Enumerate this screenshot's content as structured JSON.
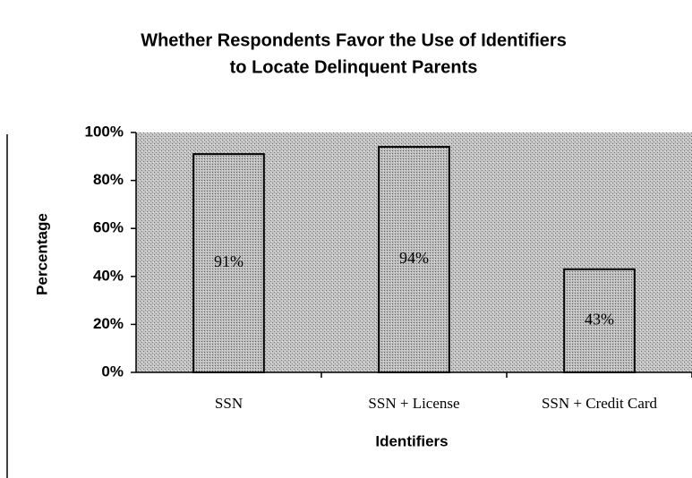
{
  "chart_data": {
    "type": "bar",
    "title": [
      "Whether Respondents Favor the Use of Identifiers",
      "to Locate Delinquent Parents"
    ],
    "x_label": "Identifiers",
    "y_label": "Percentage",
    "categories": [
      "SSN",
      "SSN + License",
      "SSN + Credit Card"
    ],
    "values": [
      91,
      94,
      43
    ],
    "value_labels": [
      "91%",
      "94%",
      "43%"
    ],
    "color": "#b0b0b0",
    "ylim": [
      0,
      100
    ],
    "yticks": [
      {
        "value": 0,
        "label": "0%"
      },
      {
        "value": 20,
        "label": "20%"
      },
      {
        "value": 40,
        "label": "40%"
      },
      {
        "value": 60,
        "label": "60%"
      },
      {
        "value": 80,
        "label": "80%"
      },
      {
        "value": 100,
        "label": "100%"
      }
    ]
  }
}
